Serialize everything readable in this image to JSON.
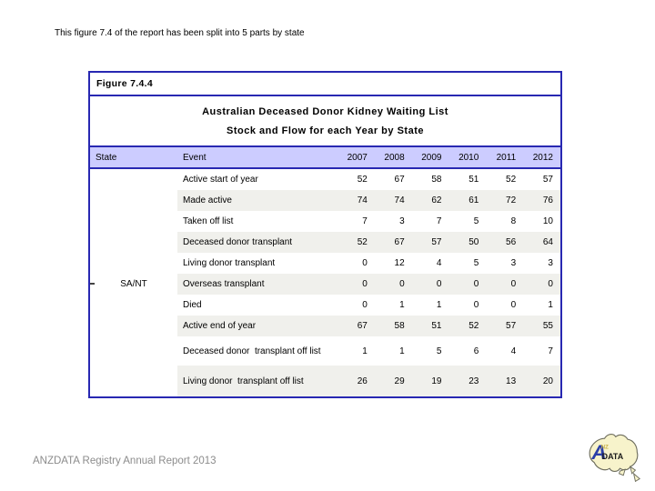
{
  "page": {
    "top_note": "This figure 7.4 of the report has been split into 5 parts by state",
    "footer": "ANZDATA Registry Annual Report 2013"
  },
  "figure": {
    "label": "Figure 7.4.4",
    "title": "Australian Deceased Donor Kidney Waiting List",
    "subtitle": "Stock and Flow for each Year by State"
  },
  "table": {
    "state_header": "State",
    "event_header": "Event",
    "years": [
      "2007",
      "2008",
      "2009",
      "2010",
      "2011",
      "2012"
    ],
    "state_label": "SA/NT",
    "rows": [
      {
        "event": "Active start of year",
        "values": [
          52,
          67,
          58,
          51,
          52,
          57
        ]
      },
      {
        "event": "Made active",
        "values": [
          74,
          74,
          62,
          61,
          72,
          76
        ]
      },
      {
        "event": "Taken off list",
        "values": [
          7,
          3,
          7,
          5,
          8,
          10
        ]
      },
      {
        "event": "Deceased donor transplant",
        "values": [
          52,
          67,
          57,
          50,
          56,
          64
        ]
      },
      {
        "event": "Living donor transplant",
        "values": [
          0,
          12,
          4,
          5,
          3,
          3
        ]
      },
      {
        "event": "Overseas transplant",
        "values": [
          0,
          0,
          0,
          0,
          0,
          0
        ]
      },
      {
        "event": "Died",
        "values": [
          0,
          1,
          1,
          0,
          0,
          1
        ]
      },
      {
        "event": "Active end of year",
        "values": [
          67,
          58,
          51,
          52,
          57,
          55
        ]
      },
      {
        "event": "Deceased donor  transplant off list",
        "values": [
          1,
          1,
          5,
          6,
          4,
          7
        ]
      },
      {
        "event": "Living donor  transplant off list",
        "values": [
          26,
          29,
          19,
          23,
          13,
          20
        ]
      }
    ]
  },
  "logo": {
    "a": "A",
    "nz": "NZ",
    "data": "DATA"
  },
  "colors": {
    "c-border": "#2828B2",
    "c-header-bg": "#CCCCFF",
    "c-band": "#F0F0EC",
    "c-footer": "#8C8C8C",
    "c-logo-map": "#F7F3CB",
    "c-logo-a": "#2B3FA8"
  }
}
